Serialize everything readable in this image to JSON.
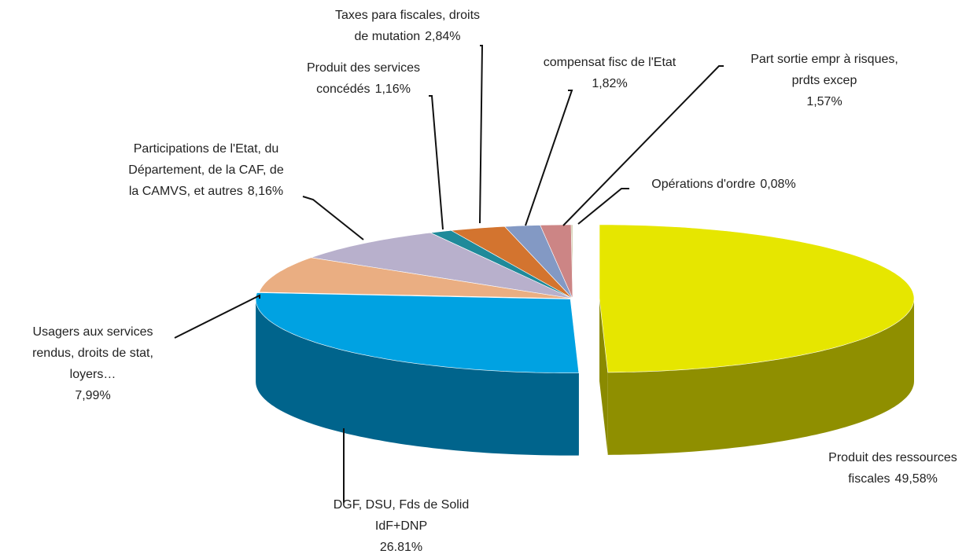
{
  "chart_data": {
    "type": "pie3d",
    "categories": [
      [
        "Produit des ressources",
        "fiscales"
      ],
      [
        "DGF, DSU, Fds de Solid",
        "IdF+DNP"
      ],
      [
        "Usagers aux services",
        "rendus, droits de stat,",
        "loyers…"
      ],
      [
        "Participations de l'Etat, du",
        "Département, de la CAF, de",
        "la CAMVS, et autres"
      ],
      [
        "Produit des services",
        "concédés"
      ],
      [
        "Taxes para fiscales, droits",
        "de mutation"
      ],
      [
        "compensat fisc de l'Etat"
      ],
      [
        "Part sortie empr à risques,",
        "prdts excep"
      ],
      [
        "Opérations d'ordre"
      ]
    ],
    "values": [
      49.58,
      26.81,
      7.99,
      8.16,
      1.16,
      2.84,
      1.82,
      1.57,
      0.08
    ],
    "value_labels": [
      "49,58%",
      "26.81%",
      "7,99%",
      "8,16%",
      "1,16%",
      "2,84%",
      "1,82%",
      "1,57%",
      "0,08%"
    ],
    "colors": [
      "#e6e600",
      "#00a2e2",
      "#eaae82",
      "#b8b0cc",
      "#1f8a9a",
      "#d3742f",
      "#8399c4",
      "#cc8585",
      "#c6c29a"
    ]
  }
}
